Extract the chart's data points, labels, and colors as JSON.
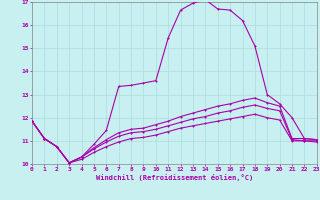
{
  "background_color": "#c8f0f0",
  "grid_color": "#aadddd",
  "line_color": "#aa00aa",
  "xlabel": "Windchill (Refroidissement éolien,°C)",
  "xlim": [
    0,
    23
  ],
  "ylim": [
    10,
    17
  ],
  "yticks": [
    10,
    11,
    12,
    13,
    14,
    15,
    16,
    17
  ],
  "xticks": [
    0,
    1,
    2,
    3,
    4,
    5,
    6,
    7,
    8,
    9,
    10,
    11,
    12,
    13,
    14,
    15,
    16,
    17,
    18,
    19,
    20,
    21,
    22,
    23
  ],
  "curve_peak_x": [
    0,
    1,
    2,
    3,
    4,
    5,
    6,
    7,
    8,
    9,
    10,
    11,
    12,
    13,
    14,
    15,
    16,
    17,
    18,
    19,
    20,
    21,
    22,
    23
  ],
  "curve_peak_y": [
    11.85,
    11.1,
    10.75,
    10.05,
    10.3,
    10.85,
    11.45,
    13.35,
    13.4,
    13.5,
    13.6,
    15.45,
    16.65,
    16.95,
    17.1,
    16.7,
    16.65,
    16.2,
    15.1,
    13.0,
    12.6,
    12.0,
    11.1,
    11.05
  ],
  "curve_upper_x": [
    0,
    1,
    2,
    3,
    4,
    5,
    6,
    7,
    8,
    9,
    10,
    11,
    12,
    13,
    14,
    15,
    16,
    17,
    18,
    19,
    20,
    21,
    22,
    23
  ],
  "curve_upper_y": [
    11.85,
    11.1,
    10.75,
    10.05,
    10.3,
    10.7,
    11.05,
    11.35,
    11.5,
    11.55,
    11.7,
    11.85,
    12.05,
    12.2,
    12.35,
    12.5,
    12.6,
    12.75,
    12.85,
    12.65,
    12.5,
    11.1,
    11.1,
    11.05
  ],
  "curve_mid_x": [
    0,
    1,
    2,
    3,
    4,
    5,
    6,
    7,
    8,
    9,
    10,
    11,
    12,
    13,
    14,
    15,
    16,
    17,
    18,
    19,
    20,
    21,
    22,
    23
  ],
  "curve_mid_y": [
    11.85,
    11.1,
    10.75,
    10.05,
    10.3,
    10.65,
    10.95,
    11.2,
    11.35,
    11.4,
    11.5,
    11.65,
    11.8,
    11.95,
    12.05,
    12.2,
    12.3,
    12.45,
    12.55,
    12.4,
    12.3,
    11.05,
    11.0,
    11.0
  ],
  "curve_low_x": [
    0,
    1,
    2,
    3,
    4,
    5,
    6,
    7,
    8,
    9,
    10,
    11,
    12,
    13,
    14,
    15,
    16,
    17,
    18,
    19,
    20,
    21,
    22,
    23
  ],
  "curve_low_y": [
    11.85,
    11.1,
    10.75,
    10.05,
    10.2,
    10.5,
    10.75,
    10.95,
    11.1,
    11.15,
    11.25,
    11.4,
    11.55,
    11.65,
    11.75,
    11.85,
    11.95,
    12.05,
    12.15,
    12.0,
    11.9,
    11.0,
    11.0,
    10.95
  ]
}
